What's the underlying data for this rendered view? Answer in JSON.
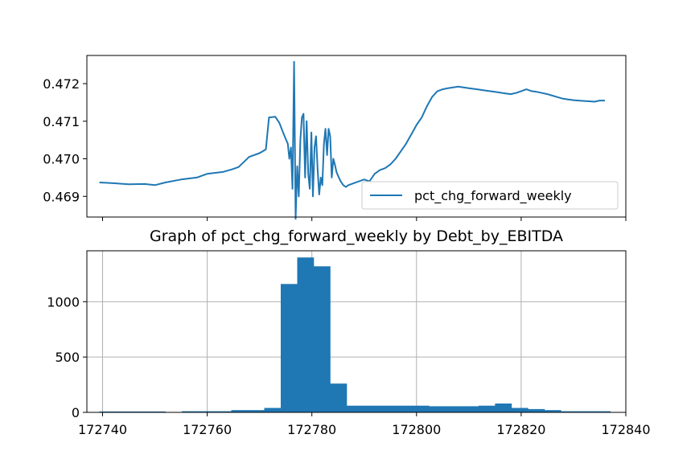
{
  "chart_data": [
    {
      "type": "line",
      "title": "",
      "xlabel": "",
      "ylabel": "",
      "xlim": [
        172737,
        172840
      ],
      "ylim": [
        0.46845,
        0.47275
      ],
      "yticks": [
        0.469,
        0.47,
        0.471,
        0.472
      ],
      "ytick_labels": [
        "0.469",
        "0.470",
        "0.471",
        "0.472"
      ],
      "xticks": [
        172740,
        172760,
        172780,
        172800,
        172820,
        172840
      ],
      "grid": false,
      "legend": "bottom-right",
      "series": [
        {
          "name": "pct_chg_forward_weekly",
          "color": "#1f77b4",
          "x": [
            172739.4,
            172742,
            172745,
            172748,
            172750,
            172752,
            172755,
            172758,
            172760,
            172763,
            172764.8,
            172766,
            172768,
            172770,
            172771.2,
            172771.8,
            172773,
            172773.8,
            172774.5,
            172775.1,
            172775.4,
            172775.7,
            172776.0,
            172776.3,
            172776.6,
            172776.9,
            172777.2,
            172777.5,
            172777.8,
            172778.1,
            172778.4,
            172778.7,
            172779.0,
            172779.3,
            172779.6,
            172779.9,
            172780.2,
            172780.5,
            172780.8,
            172781.1,
            172781.4,
            172781.7,
            172782.0,
            172782.3,
            172782.6,
            172782.9,
            172783.2,
            172783.5,
            172783.8,
            172784.1,
            172784.4,
            172784.7,
            172785.0,
            172785.5,
            172786.0,
            172786.5,
            172787.0,
            172788.0,
            172789,
            172790,
            172791,
            172792,
            172793,
            172794,
            172795,
            172796,
            172797,
            172798,
            172799,
            172800,
            172801,
            172802,
            172803,
            172804,
            172805,
            172806,
            172807,
            172808,
            172809,
            172810,
            172811,
            172812,
            172813,
            172814,
            172815,
            172816,
            172817,
            172818,
            172819,
            172820,
            172821,
            172822,
            172823,
            172824,
            172825,
            172826,
            172827,
            172828,
            172829,
            172830,
            172831,
            172832,
            172833,
            172834,
            172835,
            172836
          ],
          "y": [
            0.46937,
            0.46935,
            0.46932,
            0.46933,
            0.4693,
            0.46937,
            0.46945,
            0.4695,
            0.4696,
            0.46965,
            0.46972,
            0.46978,
            0.47005,
            0.47015,
            0.47025,
            0.4711,
            0.47112,
            0.47095,
            0.4707,
            0.4705,
            0.4704,
            0.47,
            0.4703,
            0.4692,
            0.47258,
            0.4684,
            0.4698,
            0.469,
            0.4705,
            0.4711,
            0.4712,
            0.4695,
            0.471,
            0.4696,
            0.4692,
            0.4707,
            0.469,
            0.4703,
            0.4706,
            0.4697,
            0.46905,
            0.4695,
            0.4693,
            0.4704,
            0.4708,
            0.4701,
            0.4708,
            0.4706,
            0.4695,
            0.47,
            0.46985,
            0.46965,
            0.46955,
            0.4694,
            0.4693,
            0.46925,
            0.4693,
            0.46935,
            0.4694,
            0.46945,
            0.4694,
            0.4696,
            0.4697,
            0.46975,
            0.46985,
            0.47,
            0.4702,
            0.4704,
            0.47065,
            0.4709,
            0.4711,
            0.4714,
            0.47165,
            0.4718,
            0.47185,
            0.47188,
            0.4719,
            0.47192,
            0.4719,
            0.47188,
            0.47186,
            0.47184,
            0.47182,
            0.4718,
            0.47178,
            0.47176,
            0.47174,
            0.47172,
            0.47175,
            0.4718,
            0.47185,
            0.4718,
            0.47178,
            0.47175,
            0.47172,
            0.47168,
            0.47164,
            0.4716,
            0.47158,
            0.47156,
            0.47155,
            0.47154,
            0.47153,
            0.47152,
            0.47155,
            0.47155
          ]
        }
      ]
    },
    {
      "type": "bar",
      "title": "Graph of pct_chg_forward_weekly by Debt_by_EBITDA",
      "xlabel": "",
      "ylabel": "",
      "xlim": [
        172737,
        172840
      ],
      "ylim": [
        0,
        1460
      ],
      "yticks": [
        0,
        500,
        1000
      ],
      "ytick_labels": [
        "0",
        "500",
        "1000"
      ],
      "xticks": [
        172740,
        172760,
        172780,
        172800,
        172820,
        172840
      ],
      "xtick_labels": [
        "172740",
        "172760",
        "172780",
        "172800",
        "172820",
        "172840"
      ],
      "grid": true,
      "color": "#1f77b4",
      "bin_edges": [
        172739.4,
        172742.55,
        172745.7,
        172748.85,
        172752.0,
        172755.15,
        172758.3,
        172761.45,
        172764.6,
        172767.75,
        172770.9,
        172774.05,
        172777.2,
        172780.35,
        172783.5,
        172786.65,
        172789.8,
        172792.95,
        172796.1,
        172799.25,
        172802.4,
        172805.55,
        172808.7,
        172811.85,
        172815.0,
        172818.15,
        172821.3,
        172824.45,
        172827.6,
        172830.75,
        172833.9,
        172837.05
      ],
      "values": [
        8,
        8,
        8,
        8,
        0,
        10,
        10,
        10,
        20,
        20,
        40,
        1160,
        1400,
        1320,
        260,
        60,
        60,
        60,
        60,
        60,
        55,
        55,
        55,
        60,
        80,
        40,
        30,
        20,
        10,
        10,
        10
      ]
    }
  ]
}
